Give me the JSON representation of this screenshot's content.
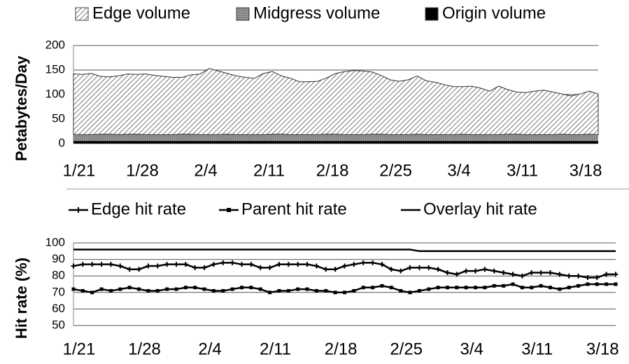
{
  "chart_data": [
    {
      "type": "area",
      "stacked": true,
      "ylabel": "Petabytes/Day",
      "categories": [
        "1/21",
        null,
        null,
        null,
        null,
        null,
        null,
        "1/28",
        null,
        null,
        null,
        null,
        null,
        null,
        "2/4",
        null,
        null,
        null,
        null,
        null,
        null,
        "2/11",
        null,
        null,
        null,
        null,
        null,
        null,
        "2/18",
        null,
        null,
        null,
        null,
        null,
        null,
        "2/25",
        null,
        null,
        null,
        null,
        null,
        null,
        "3/4",
        null,
        null,
        null,
        null,
        null,
        null,
        "3/11",
        null,
        null,
        null,
        null,
        null,
        null,
        "3/18",
        null,
        null
      ],
      "series": [
        {
          "name": "Edge volume",
          "color": "#555555",
          "fill": "hatch",
          "values": [
            124,
            123,
            125,
            118,
            117,
            120,
            123,
            122,
            124,
            121,
            119,
            117,
            116,
            121,
            124,
            135,
            130,
            124,
            120,
            117,
            115,
            125,
            128,
            119,
            115,
            108,
            108,
            109,
            115,
            124,
            129,
            131,
            130,
            127,
            120,
            112,
            109,
            112,
            119,
            110,
            107,
            102,
            98,
            97,
            99,
            95,
            89,
            99,
            91,
            86,
            86,
            89,
            91,
            87,
            82,
            79,
            83,
            88,
            83
          ]
        },
        {
          "name": "Midgress volume",
          "color": "#8c8c8c",
          "fill": "dots",
          "values": [
            13,
            13,
            13,
            14,
            14,
            13,
            14,
            14,
            13,
            13,
            13,
            13,
            14,
            14,
            13,
            13,
            13,
            14,
            13,
            13,
            13,
            13,
            14,
            14,
            13,
            13,
            13,
            13,
            14,
            14,
            13,
            13,
            13,
            14,
            14,
            13,
            13,
            13,
            14,
            13,
            13,
            13,
            13,
            14,
            13,
            13,
            13,
            13,
            14,
            14,
            13,
            13,
            13,
            13,
            14,
            13,
            13,
            14,
            13
          ]
        },
        {
          "name": "Origin volume",
          "color": "#000000",
          "fill": "solid",
          "values": [
            5,
            5,
            5,
            5,
            5,
            5,
            5,
            5,
            5,
            5,
            5,
            5,
            5,
            5,
            5,
            5,
            5,
            5,
            5,
            5,
            5,
            5,
            5,
            5,
            5,
            5,
            5,
            5,
            5,
            5,
            5,
            5,
            5,
            5,
            5,
            5,
            5,
            5,
            5,
            5,
            5,
            5,
            5,
            5,
            5,
            5,
            5,
            5,
            5,
            5,
            5,
            5,
            5,
            5,
            5,
            5,
            5,
            5,
            5
          ]
        }
      ],
      "ylim": [
        0,
        200
      ],
      "yticks": [
        0,
        50,
        100,
        150,
        200
      ],
      "grid": true
    },
    {
      "type": "line",
      "ylabel": "Hit rate (%)",
      "categories": [
        "1/21",
        null,
        null,
        null,
        null,
        null,
        null,
        "1/28",
        null,
        null,
        null,
        null,
        null,
        null,
        "2/4",
        null,
        null,
        null,
        null,
        null,
        null,
        "2/11",
        null,
        null,
        null,
        null,
        null,
        null,
        "2/18",
        null,
        null,
        null,
        null,
        null,
        null,
        "2/25",
        null,
        null,
        null,
        null,
        null,
        null,
        "3/4",
        null,
        null,
        null,
        null,
        null,
        null,
        "3/11",
        null,
        null,
        null,
        null,
        null,
        null,
        "3/18",
        null,
        null
      ],
      "series": [
        {
          "name": "Edge hit rate",
          "color": "#000000",
          "marker": "plus",
          "values": [
            86,
            87,
            87,
            87,
            87,
            86,
            84,
            84,
            86,
            86,
            87,
            87,
            87,
            85,
            85,
            87,
            88,
            88,
            87,
            87,
            85,
            85,
            87,
            87,
            87,
            87,
            86,
            84,
            84,
            86,
            87,
            88,
            88,
            87,
            84,
            83,
            85,
            85,
            85,
            84,
            82,
            81,
            83,
            83,
            84,
            83,
            82,
            81,
            80,
            82,
            82,
            82,
            81,
            80,
            80,
            79,
            79,
            81,
            81
          ]
        },
        {
          "name": "Parent hit rate",
          "color": "#000000",
          "marker": "square",
          "values": [
            72,
            71,
            70,
            72,
            71,
            72,
            73,
            72,
            71,
            71,
            72,
            72,
            73,
            73,
            72,
            71,
            71,
            72,
            73,
            73,
            72,
            70,
            71,
            71,
            72,
            72,
            71,
            71,
            70,
            70,
            71,
            73,
            73,
            74,
            73,
            71,
            70,
            71,
            72,
            73,
            73,
            73,
            73,
            73,
            73,
            74,
            74,
            75,
            73,
            73,
            74,
            73,
            72,
            73,
            74,
            75,
            75,
            75,
            75
          ]
        },
        {
          "name": "Overlay hit rate",
          "color": "#000000",
          "marker": "none",
          "values": [
            96,
            96,
            96,
            96,
            96,
            96,
            96,
            96,
            96,
            96,
            96,
            96,
            96,
            96,
            96,
            96,
            96,
            96,
            96,
            96,
            96,
            96,
            96,
            96,
            96,
            96,
            96,
            96,
            96,
            96,
            96,
            96,
            96,
            96,
            96,
            96,
            96,
            95,
            95,
            95,
            95,
            95,
            95,
            95,
            95,
            95,
            95,
            95,
            95,
            95,
            95,
            95,
            95,
            95,
            95,
            95,
            95,
            95,
            95
          ]
        }
      ],
      "ylim": [
        50,
        100
      ],
      "yticks": [
        50,
        60,
        70,
        80,
        90,
        100
      ],
      "grid": true
    }
  ]
}
